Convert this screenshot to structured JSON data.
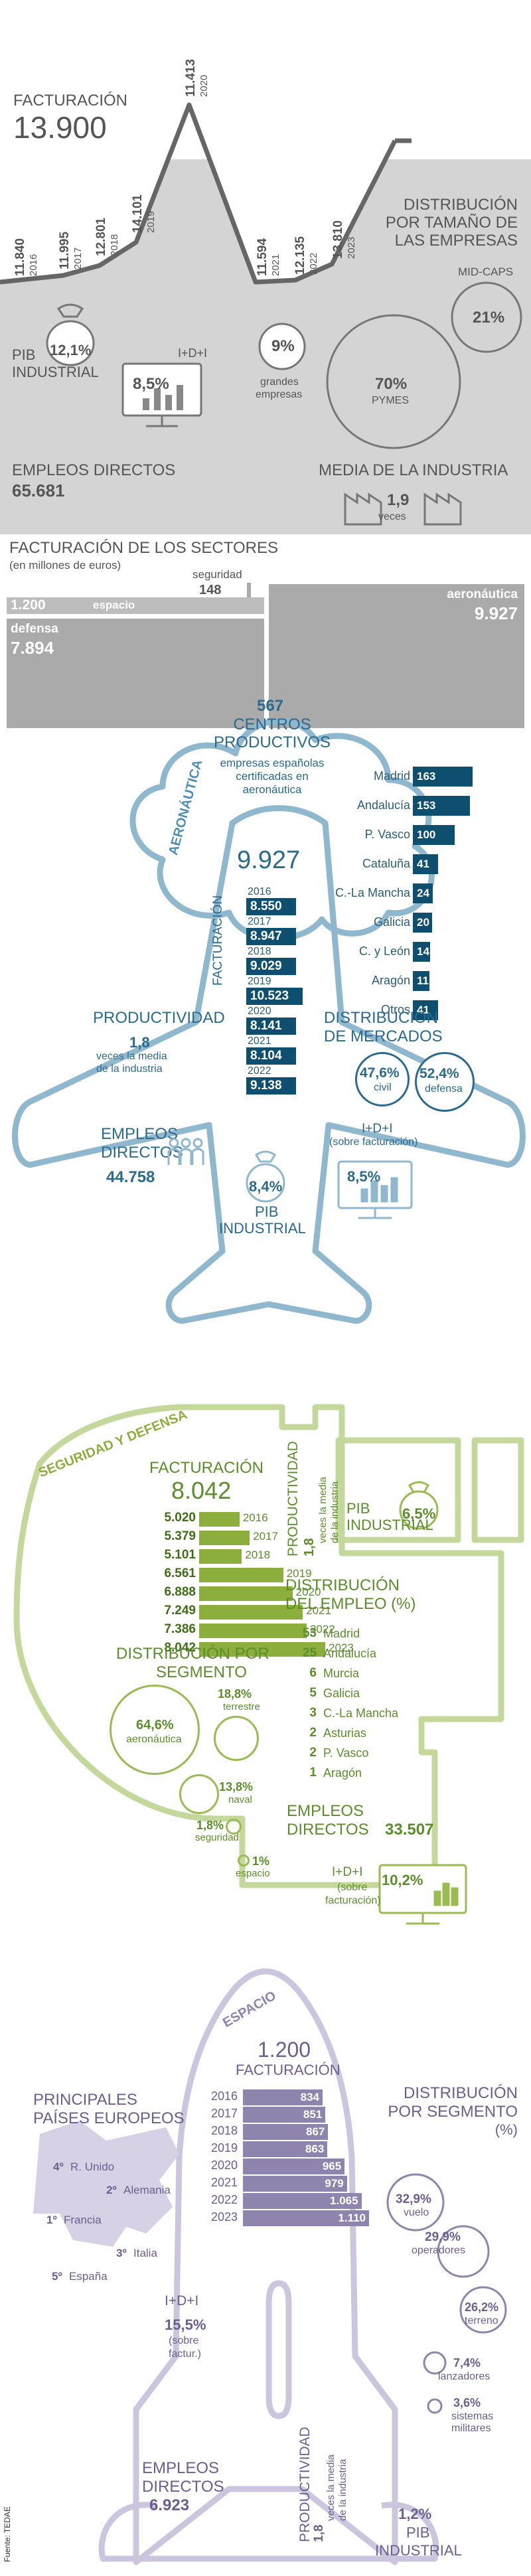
{
  "industry": {
    "facturacion_label": "FACTURACIÓN",
    "facturacion_value": "13.900",
    "series": [
      {
        "value": "11.840",
        "year": "2016"
      },
      {
        "value": "11.995",
        "year": "2017"
      },
      {
        "value": "12.801",
        "year": "2018"
      },
      {
        "value": "14.101",
        "year": "2019"
      },
      {
        "value": "11.413",
        "year": "2020"
      },
      {
        "value": "11.594",
        "year": "2021"
      },
      {
        "value": "12.135",
        "year": "2022"
      },
      {
        "value": "13.810",
        "year": "2023"
      }
    ],
    "pib_label_1": "PIB",
    "pib_label_2": "INDUSTRIAL",
    "pib_value": "12,1%",
    "id_label": "I+D+I",
    "id_value": "8,5%",
    "empleos_label": "EMPLEOS DIRECTOS",
    "empleos_value": "65.681",
    "distribucion_label_1": "DISTRIBUCIÓN",
    "distribucion_label_2": "POR TAMAÑO DE",
    "distribucion_label_3": "LAS EMPRESAS",
    "midcaps_label": "MID-CAPS",
    "midcaps_value": "21%",
    "grandes_value": "9%",
    "grandes_label_1": "grandes",
    "grandes_label_2": "empresas",
    "pymes_value": "70%",
    "pymes_label": "PYMES",
    "media_label": "MEDIA DE LA INDUSTRIA",
    "media_value": "1,9",
    "media_unit": "veces",
    "sectores_label": "FACTURACIÓN DE LOS SECTORES",
    "sectores_sub": "(en millones de euros)",
    "seguridad_label": "seguridad",
    "seguridad_value": "148",
    "espacio_value": "1.200",
    "espacio_label": "espacio",
    "defensa_label": "defensa",
    "defensa_value": "7.894",
    "aeronautica_label": "aeronáutica",
    "aeronautica_value": "9.927"
  },
  "aero": {
    "section_label": "AERONÁUTICA",
    "centros_value": "567",
    "centros_label_1": "CENTROS",
    "centros_label_2": "PRODUCTIVOS",
    "centros_sub_1": "empresas españolas",
    "centros_sub_2": "certificadas en",
    "centros_sub_3": "aeronáutica",
    "regions": [
      {
        "name": "Madrid",
        "value": "163"
      },
      {
        "name": "Andalucía",
        "value": "153"
      },
      {
        "name": "P. Vasco",
        "value": "100"
      },
      {
        "name": "Cataluña",
        "value": "41"
      },
      {
        "name": "C.-La Mancha",
        "value": "24"
      },
      {
        "name": "Galicia",
        "value": "20"
      },
      {
        "name": "C. y León",
        "value": "14"
      },
      {
        "name": "Aragón",
        "value": "11"
      },
      {
        "name": "Otros",
        "value": "41"
      }
    ],
    "facturacion_total": "9.927",
    "facturacion_label": "FACTURACIÓN",
    "years": [
      {
        "year": "2016",
        "value": "8.550"
      },
      {
        "year": "2017",
        "value": "8.947"
      },
      {
        "year": "2018",
        "value": "9.029"
      },
      {
        "year": "2019",
        "value": "10.523"
      },
      {
        "year": "2020",
        "value": "8.141"
      },
      {
        "year": "2021",
        "value": "8.104"
      },
      {
        "year": "2022",
        "value": "9.138"
      }
    ],
    "productividad_label": "PRODUCTIVIDAD",
    "productividad_value": "1,8",
    "productividad_sub_1": "veces la media",
    "productividad_sub_2": "de la industria",
    "mercados_label_1": "DISTRIBUCIÓN",
    "mercados_label_2": "DE MERCADOS",
    "civil_value": "47,6%",
    "civil_label": "civil",
    "defensa_value": "52,4%",
    "defensa_label": "defensa",
    "empleos_label_1": "EMPLEOS",
    "empleos_label_2": "DIRECTOS",
    "empleos_value": "44.758",
    "id_label": "I+D+I",
    "id_sub": "(sobre facturación)",
    "id_value": "8,5%",
    "pib_value": "8,4%",
    "pib_label_1": "PIB",
    "pib_label_2": "INDUSTRIAL"
  },
  "defensa": {
    "section_label": "SEGURIDAD Y DEFENSA",
    "facturacion_label": "FACTURACIÓN",
    "facturacion_value": "8.042",
    "years": [
      {
        "year": "2016",
        "value": "5.020"
      },
      {
        "year": "2017",
        "value": "5.379"
      },
      {
        "year": "2018",
        "value": "5.101"
      },
      {
        "year": "2019",
        "value": "6.561"
      },
      {
        "year": "2020",
        "value": "6.888"
      },
      {
        "year": "2021",
        "value": "7.249"
      },
      {
        "year": "2022",
        "value": "7.386"
      },
      {
        "year": "2023",
        "value": "8.042"
      }
    ],
    "productividad_label": "PRODUCTIVIDAD",
    "productividad_value": "1,8",
    "productividad_sub_1": "veces la media",
    "productividad_sub_2": "de la industria",
    "pib_label_1": "PIB",
    "pib_label_2": "INDUSTRIAL",
    "pib_value": "6,5%",
    "empleo_label_1": "DISTRIBUCIÓN",
    "empleo_label_2": "DEL EMPLEO (%)",
    "empleo": [
      {
        "value": "53",
        "name": "Madrid"
      },
      {
        "value": "25",
        "name": "Andalucía"
      },
      {
        "value": "6",
        "name": "Murcia"
      },
      {
        "value": "5",
        "name": "Galicia"
      },
      {
        "value": "3",
        "name": "C.-La Mancha"
      },
      {
        "value": "2",
        "name": "Asturias"
      },
      {
        "value": "2",
        "name": "P. Vasco"
      },
      {
        "value": "1",
        "name": "Aragón"
      }
    ],
    "segmento_label_1": "DISTRIBUCIÓN POR",
    "segmento_label_2": "SEGMENTO",
    "aeronautica_value": "64,6%",
    "aeronautica_label": "aeronáutica",
    "terrestre_value": "18,8%",
    "terrestre_label": "terrestre",
    "naval_value": "13,8%",
    "naval_label": "naval",
    "seguridad_value": "1,8%",
    "seguridad_label": "seguridad",
    "espacio_value": "1%",
    "espacio_label": "espacio",
    "empleos_label_1": "EMPLEOS",
    "empleos_label_2": "DIRECTOS",
    "empleos_value": "33.507",
    "id_label": "I+D+I",
    "id_value": "10,2%",
    "id_sub_1": "(sobre",
    "id_sub_2": "facturación)"
  },
  "espacio": {
    "section_label": "ESPACIO",
    "facturacion_value": "1.200",
    "facturacion_label": "FACTURACIÓN",
    "years": [
      {
        "year": "2016",
        "value": "834"
      },
      {
        "year": "2017",
        "value": "851"
      },
      {
        "year": "2018",
        "value": "867"
      },
      {
        "year": "2019",
        "value": "863"
      },
      {
        "year": "2020",
        "value": "965"
      },
      {
        "year": "2021",
        "value": "979"
      },
      {
        "year": "2022",
        "value": "1.065"
      },
      {
        "year": "2023",
        "value": "1.110"
      }
    ],
    "paises_label_1": "PRINCIPALES",
    "paises_label_2": "PAÍSES EUROPEOS",
    "paises": [
      {
        "rank": "4º",
        "name": "R. Unido"
      },
      {
        "rank": "2º",
        "name": "Alemania"
      },
      {
        "rank": "1º",
        "name": "Francia"
      },
      {
        "rank": "3º",
        "name": "Italia"
      },
      {
        "rank": "5º",
        "name": "España"
      }
    ],
    "segmento_label_1": "DISTRIBUCIÓN",
    "segmento_label_2": "POR SEGMENTO",
    "segmento_label_3": "(%)",
    "vuelo_value": "32,9%",
    "vuelo_label": "vuelo",
    "operadores_value": "29,9%",
    "operadores_label": "operadores",
    "terreno_value": "26,2%",
    "terreno_label": "terreno",
    "lanzadores_value": "7,4%",
    "lanzadores_label": "lanzadores",
    "sistemas_value": "3,6%",
    "sistemas_label_1": "sistemas",
    "sistemas_label_2": "militares",
    "id_label": "I+D+I",
    "id_value": "15,5%",
    "id_sub_1": "(sobre",
    "id_sub_2": "factur.)",
    "empleos_label_1": "EMPLEOS",
    "empleos_label_2": "DIRECTOS",
    "empleos_value": "6.923",
    "productividad_label": "PRODUCTIVIDAD",
    "productividad_value": "1,8",
    "productividad_sub_1": "veces la media",
    "productividad_sub_2": "de la industria",
    "pib_value": "1,2%",
    "pib_label_1": "PIB",
    "pib_label_2": "INDUSTRIAL",
    "fuente": "Fuente: TEDAE"
  }
}
